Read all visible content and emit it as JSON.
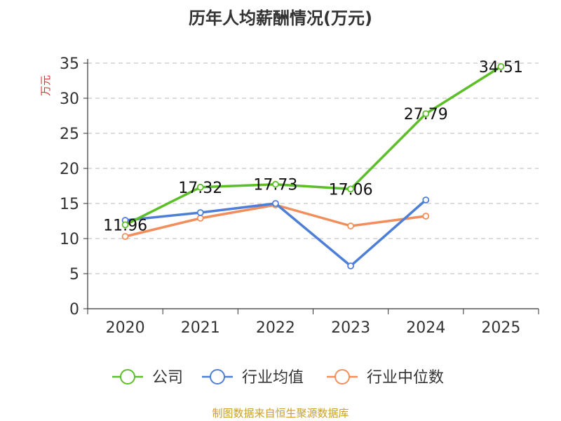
{
  "chart_data": {
    "type": "line",
    "title": "历年人均薪酬情况(万元)",
    "ylabel": "万元",
    "xlabel": "",
    "categories": [
      "2020",
      "2021",
      "2022",
      "2023",
      "2024",
      "2025"
    ],
    "ylim": [
      0,
      35
    ],
    "yticks": [
      0,
      5,
      10,
      15,
      20,
      25,
      30,
      35
    ],
    "grid": true,
    "legend_position": "bottom",
    "series": [
      {
        "name": "公司",
        "color": "#5dbf28",
        "values": [
          11.96,
          17.32,
          17.73,
          17.06,
          27.79,
          34.51
        ],
        "labels": [
          "11.96",
          "17.32",
          "17.73",
          "17.06",
          "27.79",
          "34.51"
        ]
      },
      {
        "name": "行业均值",
        "color": "#4d7fd6",
        "values": [
          12.6,
          13.7,
          15.0,
          6.1,
          15.5,
          null
        ]
      },
      {
        "name": "行业中位数",
        "color": "#f28e5b",
        "values": [
          10.3,
          12.9,
          14.8,
          11.8,
          13.2,
          null
        ]
      }
    ]
  },
  "source": "制图数据来自恒生聚源数据库"
}
